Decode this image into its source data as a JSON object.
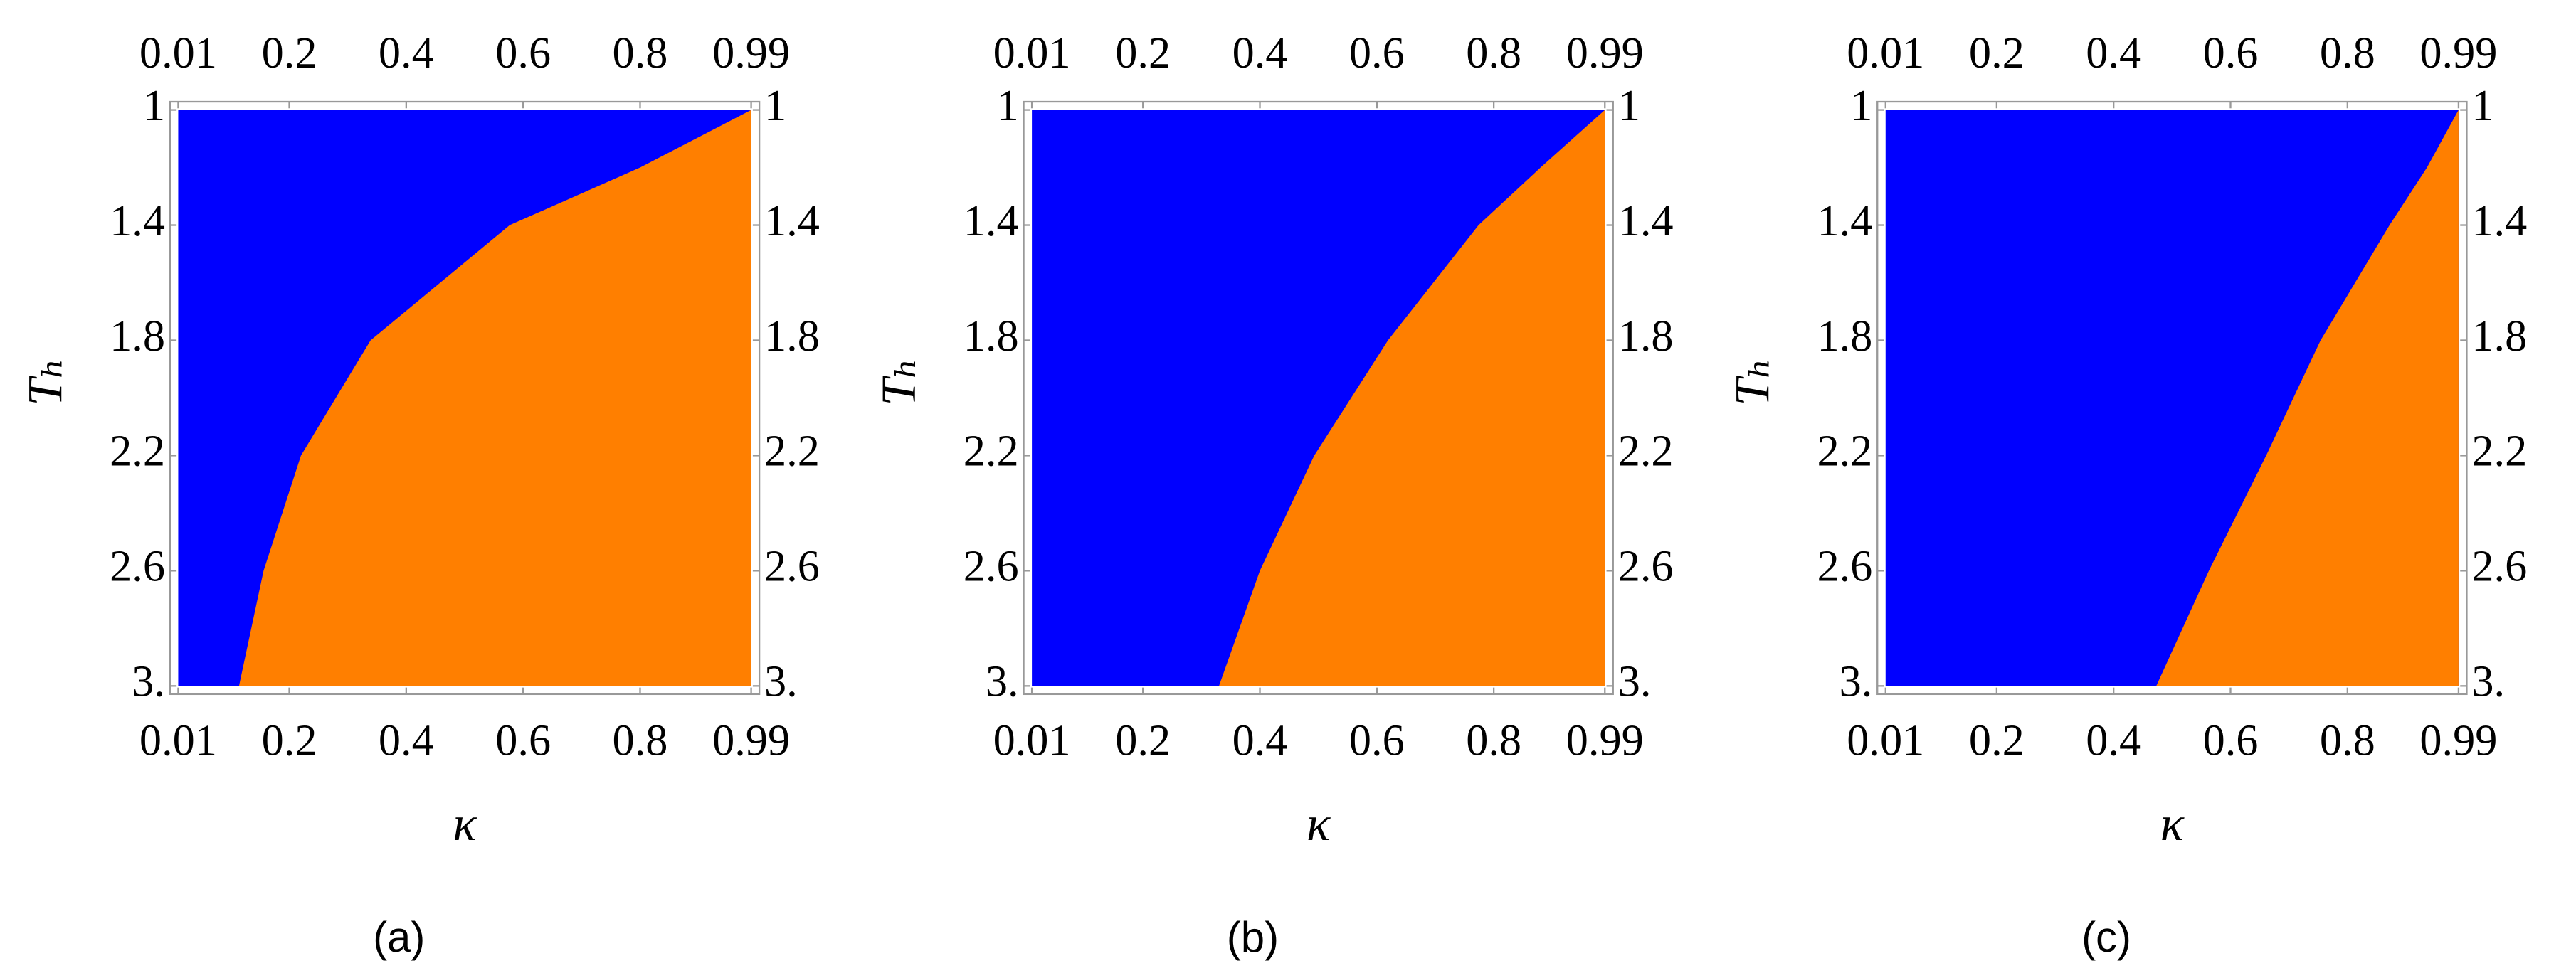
{
  "chart_data": [
    {
      "type": "region",
      "caption": "(a)",
      "xlabel": "κ",
      "ylabel": "Tₕ",
      "xlim": [
        0.01,
        0.99
      ],
      "ylim": [
        1,
        3
      ],
      "y_inverted": true,
      "xticks": [
        0.01,
        0.2,
        0.4,
        0.6,
        0.8,
        0.99
      ],
      "yticks": [
        1,
        1.4,
        1.8,
        2.2,
        2.6,
        {
          "value": 3,
          "label": "3."
        }
      ],
      "background_color": "#0000ff",
      "boundary": {
        "color": "#ff7f00",
        "x": [
          0.99,
          0.8,
          0.577,
          0.339,
          0.22,
          0.156,
          0.114
        ],
        "y": [
          1,
          1.2,
          1.4,
          1.8,
          2.2,
          2.6,
          3
        ]
      }
    },
    {
      "type": "region",
      "caption": "(b)",
      "xlabel": "κ",
      "ylabel": "Tₕ",
      "xlim": [
        0.01,
        0.99
      ],
      "ylim": [
        1,
        3
      ],
      "y_inverted": true,
      "xticks": [
        0.01,
        0.2,
        0.4,
        0.6,
        0.8,
        0.99
      ],
      "yticks": [
        1,
        1.4,
        1.8,
        2.2,
        2.6,
        {
          "value": 3,
          "label": "3."
        }
      ],
      "background_color": "#0000ff",
      "boundary": {
        "color": "#ff7f00",
        "x": [
          0.99,
          0.88,
          0.774,
          0.619,
          0.493,
          0.4,
          0.33
        ],
        "y": [
          1,
          1.2,
          1.4,
          1.8,
          2.2,
          2.6,
          3
        ]
      }
    },
    {
      "type": "region",
      "caption": "(c)",
      "xlabel": "κ",
      "ylabel": "Tₕ",
      "xlim": [
        0.01,
        0.99
      ],
      "ylim": [
        1,
        3
      ],
      "y_inverted": true,
      "xticks": [
        0.01,
        0.2,
        0.4,
        0.6,
        0.8,
        0.99
      ],
      "yticks": [
        1,
        1.4,
        1.8,
        2.2,
        2.6,
        {
          "value": 3,
          "label": "3."
        }
      ],
      "background_color": "#0000ff",
      "boundary": {
        "color": "#ff7f00",
        "x": [
          0.99,
          0.936,
          0.872,
          0.754,
          0.661,
          0.563,
          0.473
        ],
        "y": [
          1,
          1.2,
          1.4,
          1.8,
          2.2,
          2.6,
          3
        ]
      }
    }
  ]
}
